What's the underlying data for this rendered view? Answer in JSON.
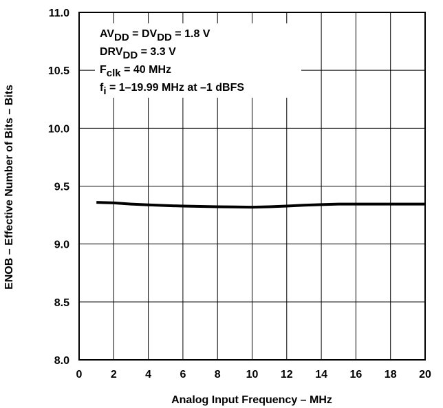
{
  "chart_data": {
    "type": "line",
    "xlabel": "Analog Input Frequency – MHz",
    "ylabel": "ENOB – Effective Number of Bits – Bits",
    "xlim": [
      0,
      20
    ],
    "ylim": [
      8.0,
      11.0
    ],
    "x_ticks": [
      "0",
      "2",
      "4",
      "6",
      "8",
      "10",
      "12",
      "14",
      "16",
      "18",
      "20"
    ],
    "y_ticks": [
      "8.0",
      "8.5",
      "9.0",
      "9.5",
      "10.0",
      "10.5",
      "11.0"
    ],
    "grid": true,
    "series": [
      {
        "x": [
          1,
          2,
          3,
          4,
          5,
          6,
          7,
          8,
          9,
          10,
          11,
          12,
          13,
          14,
          15,
          16,
          17,
          18,
          19,
          20
        ],
        "y": [
          9.36,
          9.355,
          9.345,
          9.338,
          9.332,
          9.328,
          9.325,
          9.322,
          9.32,
          9.318,
          9.322,
          9.328,
          9.335,
          9.34,
          9.345,
          9.345,
          9.345,
          9.345,
          9.345,
          9.345
        ]
      }
    ],
    "annotation": {
      "line1": {
        "a": "AV",
        "a_sub": "DD",
        "b": " = DV",
        "b_sub": "DD",
        "c": " = 1.8 V"
      },
      "line2": {
        "a": "DRV",
        "a_sub": "DD",
        "b": " = 3.3 V"
      },
      "line3": {
        "a": "F",
        "a_sub": "clk",
        "b": " = 40 MHz"
      },
      "line4": {
        "a": "f",
        "a_sub": "i",
        "b": " = 1–19.99 MHz at –1 dBFS"
      }
    }
  },
  "colors": {
    "line": "#000000",
    "grid": "#000000",
    "background": "#ffffff"
  }
}
